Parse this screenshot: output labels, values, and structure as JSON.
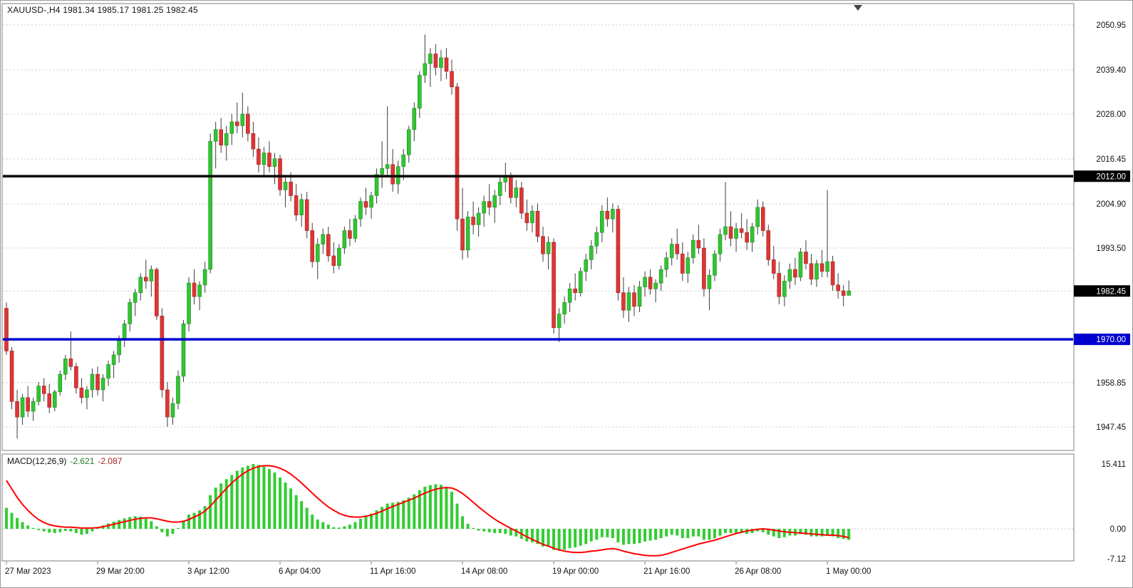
{
  "header": {
    "symbol_line": "XAUUSD-,H4 1981.34 1985.17 1981.25 1982.45"
  },
  "macd": {
    "name": "MACD(12,26,9)",
    "value_main_text": "-2.621",
    "value_signal_text": "-2.087"
  },
  "colors": {
    "background": "#FFFFFF",
    "panel_border": "#7d7d7d",
    "grid": "#c9c9c9",
    "up_fill": "#33c433",
    "up_edge": "#1d8c1d",
    "down_fill": "#dd3636",
    "down_edge": "#9e2020",
    "wick": "#3c3c3c",
    "hline_black": "#000000",
    "hline_blue": "#0000cf",
    "badge_black": "#000000",
    "badge_blue": "#0000cf",
    "badge_text": "#FFFFFF",
    "axis_text": "#111111",
    "hist": "#33cc33",
    "signal": "#ff0000",
    "shift_marker": "#444444"
  },
  "chart_data": {
    "type": "candlestick",
    "symbol": "XAUUSD-",
    "timeframe": "H4",
    "title": "XAUUSD-,H4",
    "current_ohlc": {
      "open": 1981.34,
      "high": 1985.17,
      "low": 1981.25,
      "close": 1982.45
    },
    "price_axis": {
      "range": [
        1941.5,
        2056.5
      ],
      "ticks": [
        {
          "label": "2050.95",
          "price": 2050.95,
          "badge": ""
        },
        {
          "label": "2039.40",
          "price": 2039.4,
          "badge": ""
        },
        {
          "label": "2028.00",
          "price": 2028.0,
          "badge": ""
        },
        {
          "label": "2016.45",
          "price": 2016.45,
          "badge": ""
        },
        {
          "label": "2012.00",
          "price": 2012.0,
          "badge": "black"
        },
        {
          "label": "2004.90",
          "price": 2004.9,
          "badge": ""
        },
        {
          "label": "1993.50",
          "price": 1993.5,
          "badge": ""
        },
        {
          "label": "1982.45",
          "price": 1982.45,
          "badge": "black"
        },
        {
          "label": "1970.00",
          "price": 1970.0,
          "badge": "blue"
        },
        {
          "label": "1958.85",
          "price": 1958.85,
          "badge": ""
        },
        {
          "label": "1947.45",
          "price": 1947.45,
          "badge": ""
        }
      ],
      "horizontal_lines": [
        {
          "label": "2012.00",
          "price": 2012.0,
          "color": "black",
          "width": 3.5
        },
        {
          "label": "1970.00",
          "price": 1970.0,
          "color": "blue",
          "width": 3.5
        }
      ]
    },
    "time_axis": {
      "labels": [
        "27 Mar 2023",
        "29 Mar 20:00",
        "3 Apr 12:00",
        "6 Apr 04:00",
        "11 Apr 16:00",
        "14 Apr 08:00",
        "19 Apr 00:00",
        "21 Apr 16:00",
        "26 Apr 08:00",
        "1 May 00:00"
      ],
      "indices": [
        0,
        17,
        34,
        51,
        68,
        85,
        102,
        119,
        136,
        153
      ]
    },
    "candles": [
      [
        1978,
        1979.5,
        1966,
        1967
      ],
      [
        1967,
        1968,
        1952,
        1954
      ],
      [
        1954,
        1957,
        1944.5,
        1950
      ],
      [
        1950,
        1956,
        1948,
        1955
      ],
      [
        1955,
        1958,
        1950,
        1951.5
      ],
      [
        1951.5,
        1955,
        1949,
        1954
      ],
      [
        1954,
        1959,
        1953,
        1958
      ],
      [
        1958,
        1960,
        1954,
        1956
      ],
      [
        1956,
        1958.5,
        1951,
        1952.5
      ],
      [
        1952.5,
        1957,
        1951.5,
        1956.5
      ],
      [
        1956.5,
        1962,
        1955.5,
        1961
      ],
      [
        1961,
        1966,
        1959.5,
        1965
      ],
      [
        1965,
        1972,
        1962,
        1963
      ],
      [
        1963,
        1964,
        1956,
        1957.5
      ],
      [
        1957.5,
        1960,
        1953.5,
        1955
      ],
      [
        1955,
        1958,
        1952,
        1957
      ],
      [
        1957,
        1962.5,
        1955,
        1961
      ],
      [
        1961,
        1963,
        1955.5,
        1957
      ],
      [
        1957,
        1961,
        1954,
        1960
      ],
      [
        1960,
        1964.5,
        1958,
        1963.5
      ],
      [
        1963.5,
        1967,
        1960,
        1966
      ],
      [
        1966,
        1971,
        1964,
        1970
      ],
      [
        1970,
        1975,
        1968,
        1974
      ],
      [
        1974,
        1980.5,
        1972,
        1979.5
      ],
      [
        1979.5,
        1983,
        1976,
        1982
      ],
      [
        1982,
        1987,
        1980,
        1986
      ],
      [
        1986,
        1990.5,
        1983,
        1985
      ],
      [
        1985,
        1989,
        1981,
        1988
      ],
      [
        1988,
        1988.5,
        1975,
        1976
      ],
      [
        1976,
        1978,
        1955,
        1957
      ],
      [
        1957,
        1959,
        1947.5,
        1950
      ],
      [
        1950,
        1955,
        1948,
        1953.5
      ],
      [
        1953.5,
        1962,
        1952,
        1960.5
      ],
      [
        1960.5,
        1975,
        1959,
        1974
      ],
      [
        1974,
        1986,
        1972,
        1984.5
      ],
      [
        1984.5,
        1988,
        1979,
        1981
      ],
      [
        1981,
        1985,
        1977.5,
        1984
      ],
      [
        1984,
        1990,
        1982,
        1988
      ],
      [
        1988,
        2023,
        1987,
        2021
      ],
      [
        2021,
        2026,
        2014,
        2024
      ],
      [
        2024,
        2027,
        2018,
        2020
      ],
      [
        2020,
        2025,
        2016,
        2023
      ],
      [
        2023,
        2028,
        2020,
        2026
      ],
      [
        2026,
        2031,
        2023,
        2025
      ],
      [
        2025,
        2033.5,
        2022,
        2028
      ],
      [
        2028,
        2030,
        2021,
        2023
      ],
      [
        2023,
        2026,
        2017,
        2019
      ],
      [
        2019,
        2022,
        2013,
        2015
      ],
      [
        2015,
        2019.5,
        2012,
        2018
      ],
      [
        2018,
        2021,
        2013,
        2014.5
      ],
      [
        2014.5,
        2018,
        2010,
        2016.5
      ],
      [
        2016.5,
        2017.5,
        2007,
        2008.5
      ],
      [
        2008.5,
        2012,
        2004,
        2010.5
      ],
      [
        2010.5,
        2013,
        2005.5,
        2007
      ],
      [
        2007,
        2010,
        2000.5,
        2002
      ],
      [
        2002,
        2007.5,
        1999,
        2006
      ],
      [
        2006,
        2008,
        1996,
        1998
      ],
      [
        1998,
        2000,
        1988.5,
        1990
      ],
      [
        1990,
        1996,
        1985.5,
        1994.5
      ],
      [
        1994.5,
        1998.5,
        1992,
        1997
      ],
      [
        1997,
        1999,
        1990,
        1991.5
      ],
      [
        1991.5,
        1995,
        1987,
        1989
      ],
      [
        1989,
        1994.5,
        1988,
        1993.5
      ],
      [
        1993.5,
        1999,
        1992,
        1998
      ],
      [
        1998,
        2001,
        1994,
        1996
      ],
      [
        1996,
        2002,
        1995,
        2001
      ],
      [
        2001,
        2006.5,
        1999,
        2005.5
      ],
      [
        2005.5,
        2009,
        2002,
        2004
      ],
      [
        2004,
        2008,
        2001,
        2007
      ],
      [
        2007,
        2014,
        2005,
        2012.5
      ],
      [
        2012.5,
        2021,
        2009,
        2014
      ],
      [
        2014,
        2030,
        2012,
        2015
      ],
      [
        2015,
        2019,
        2008,
        2010
      ],
      [
        2010,
        2016,
        2007.5,
        2014.5
      ],
      [
        2014.5,
        2019,
        2011,
        2017.5
      ],
      [
        2017.5,
        2025,
        2015.5,
        2024
      ],
      [
        2024,
        2031,
        2021,
        2029.5
      ],
      [
        2029.5,
        2039,
        2027,
        2038
      ],
      [
        2038,
        2048.5,
        2036,
        2041
      ],
      [
        2041,
        2045,
        2035,
        2043.5
      ],
      [
        2043.5,
        2046,
        2038,
        2040
      ],
      [
        2040,
        2044.5,
        2036.5,
        2042.5
      ],
      [
        2042.5,
        2045,
        2037,
        2039
      ],
      [
        2039,
        2042,
        2033,
        2035
      ],
      [
        2035,
        2036,
        1998,
        2001
      ],
      [
        2001,
        2009,
        1990.5,
        1993
      ],
      [
        1993,
        2003,
        1991,
        2001.5
      ],
      [
        2001.5,
        2005.5,
        1997,
        1999.5
      ],
      [
        1999.5,
        2004,
        1996.5,
        2002.5
      ],
      [
        2002.5,
        2007,
        1999,
        2005.5
      ],
      [
        2005.5,
        2010,
        2002,
        2004
      ],
      [
        2004,
        2008.5,
        2000,
        2007
      ],
      [
        2007,
        2012,
        2004.5,
        2010.5
      ],
      [
        2010.5,
        2015.5,
        2008,
        2012
      ],
      [
        2012,
        2013,
        2005,
        2006.5
      ],
      [
        2006.5,
        2011,
        2004,
        2009
      ],
      [
        2009,
        2010.5,
        2001,
        2002.5
      ],
      [
        2002.5,
        2006,
        1998,
        2000
      ],
      [
        2000,
        2004.5,
        1997.5,
        2003
      ],
      [
        2003,
        2005,
        1995,
        1996.5
      ],
      [
        1996.5,
        1999,
        1990,
        1992
      ],
      [
        1992,
        1996.5,
        1988,
        1995
      ],
      [
        1995,
        1996,
        1971.5,
        1973
      ],
      [
        1973,
        1978,
        1969.3,
        1976.5
      ],
      [
        1976.5,
        1981,
        1974,
        1979.5
      ],
      [
        1979.5,
        1984.5,
        1977,
        1983
      ],
      [
        1983,
        1987,
        1980,
        1982
      ],
      [
        1982,
        1988.5,
        1981,
        1987.5
      ],
      [
        1987.5,
        1992,
        1985,
        1990.5
      ],
      [
        1990.5,
        1995.5,
        1988,
        1994
      ],
      [
        1994,
        1999,
        1992,
        1997.5
      ],
      [
        1997.5,
        2004.5,
        1995,
        2003
      ],
      [
        2003,
        2006.5,
        1999,
        2001
      ],
      [
        2001,
        2005,
        1997.5,
        2003.5
      ],
      [
        2003.5,
        2004.5,
        1980,
        1982
      ],
      [
        1982,
        1986,
        1975.5,
        1977.5
      ],
      [
        1977.5,
        1983.5,
        1974.5,
        1982
      ],
      [
        1982,
        1984,
        1976,
        1978.5
      ],
      [
        1978.5,
        1985,
        1977,
        1983.5
      ],
      [
        1983.5,
        1987.5,
        1981,
        1986
      ],
      [
        1986,
        1988,
        1981.5,
        1983
      ],
      [
        1983,
        1985.5,
        1979.5,
        1984.5
      ],
      [
        1984.5,
        1989,
        1982.5,
        1988
      ],
      [
        1988,
        1992.5,
        1986,
        1991
      ],
      [
        1991,
        1996,
        1989,
        1994.5
      ],
      [
        1994.5,
        1998.5,
        1990.5,
        1992
      ],
      [
        1992,
        1995,
        1985,
        1987
      ],
      [
        1987,
        1992.5,
        1984.5,
        1991
      ],
      [
        1991,
        1997,
        1989.5,
        1995.5
      ],
      [
        1995.5,
        1999.5,
        1992,
        1993.5
      ],
      [
        1993.5,
        1996,
        1981,
        1983
      ],
      [
        1983,
        1988,
        1977.5,
        1986.5
      ],
      [
        1986.5,
        1993,
        1985,
        1992
      ],
      [
        1992,
        1998.5,
        1990,
        1997
      ],
      [
        1997,
        2010.5,
        1995.5,
        1999
      ],
      [
        1999,
        2003,
        1994,
        1996
      ],
      [
        1996,
        2000,
        1992.5,
        1998.5
      ],
      [
        1998.5,
        2002.5,
        1996,
        1997.5
      ],
      [
        1997.5,
        2001,
        1993,
        1995
      ],
      [
        1995,
        2000,
        1992.5,
        1999
      ],
      [
        1999,
        2006,
        1997,
        2004
      ],
      [
        2004,
        2005.5,
        1996.5,
        1998
      ],
      [
        1998,
        1999.5,
        1989,
        1990.5
      ],
      [
        1990.5,
        1994,
        1985.5,
        1987
      ],
      [
        1987,
        1990,
        1979,
        1981
      ],
      [
        1981,
        1986.5,
        1978.5,
        1985
      ],
      [
        1985,
        1989.5,
        1983,
        1988
      ],
      [
        1988,
        1991,
        1984,
        1986
      ],
      [
        1986,
        1993.5,
        1985,
        1992.5
      ],
      [
        1992.5,
        1995.5,
        1988,
        1989.5
      ],
      [
        1989.5,
        1992,
        1984,
        1985.5
      ],
      [
        1985.5,
        1990.5,
        1983.5,
        1989.5
      ],
      [
        1989.5,
        1993,
        1986,
        1987.5
      ],
      [
        1987.5,
        2008.5,
        1986,
        1990
      ],
      [
        1990,
        1991.5,
        1982.5,
        1984
      ],
      [
        1984,
        1987,
        1980.5,
        1982.5
      ],
      [
        1982.5,
        1984,
        1978.5,
        1981.3
      ],
      [
        1981.34,
        1985.17,
        1981.25,
        1982.45
      ]
    ],
    "indicator": {
      "name": "MACD",
      "params": "12,26,9",
      "value_main": -2.621,
      "value_signal": -2.087,
      "axis_ticks": [
        {
          "label": "15.411",
          "value": 15.411
        },
        {
          "label": "0.00",
          "value": 0
        },
        {
          "label": "-7.12",
          "value": -7.12
        }
      ],
      "histogram": [
        5.0,
        3.8,
        2.6,
        1.6,
        0.8,
        0.2,
        -0.3,
        -0.6,
        -0.9,
        -1.0,
        -0.8,
        -0.5,
        -0.6,
        -1.0,
        -1.4,
        -1.2,
        -0.6,
        0.2,
        0.8,
        1.3,
        1.7,
        2.1,
        2.5,
        2.8,
        3.0,
        2.9,
        2.4,
        1.8,
        0.6,
        -0.8,
        -1.8,
        -1.2,
        0.2,
        1.8,
        3.4,
        3.8,
        4.4,
        5.4,
        8.0,
        9.8,
        10.8,
        11.8,
        12.8,
        13.8,
        14.6,
        15.0,
        15.4,
        15.2,
        14.8,
        14.2,
        13.4,
        12.2,
        11.0,
        9.6,
        8.0,
        6.6,
        5.0,
        3.4,
        2.2,
        1.6,
        1.0,
        0.4,
        0.3,
        0.6,
        1.0,
        1.6,
        2.4,
        3.0,
        3.6,
        4.4,
        5.2,
        6.0,
        6.2,
        6.4,
        6.8,
        7.4,
        8.2,
        9.2,
        10.0,
        10.4,
        10.6,
        10.5,
        10.0,
        8.8,
        6.0,
        3.0,
        1.2,
        0.2,
        -0.4,
        -0.6,
        -0.8,
        -1.0,
        -1.0,
        -1.2,
        -1.6,
        -1.8,
        -2.4,
        -3.0,
        -3.2,
        -3.6,
        -4.2,
        -4.0,
        -5.0,
        -5.2,
        -5.0,
        -4.6,
        -4.4,
        -4.0,
        -3.6,
        -3.0,
        -2.6,
        -2.0,
        -2.0,
        -2.2,
        -3.2,
        -3.8,
        -3.6,
        -3.6,
        -3.4,
        -3.0,
        -2.8,
        -2.6,
        -2.2,
        -1.8,
        -1.4,
        -1.6,
        -2.2,
        -2.2,
        -1.8,
        -1.8,
        -2.6,
        -2.6,
        -2.2,
        -1.6,
        -1.0,
        -1.0,
        -1.0,
        -1.0,
        -1.2,
        -1.0,
        -0.6,
        -0.8,
        -1.4,
        -1.8,
        -2.2,
        -2.0,
        -1.6,
        -1.6,
        -1.2,
        -1.4,
        -1.8,
        -1.8,
        -1.8,
        -1.4,
        -1.8,
        -2.2,
        -2.4,
        -2.621
      ],
      "signal": [
        11.5,
        9.5,
        7.5,
        5.8,
        4.4,
        3.2,
        2.2,
        1.5,
        1.0,
        0.7,
        0.5,
        0.4,
        0.4,
        0.3,
        0.2,
        0.2,
        0.2,
        0.3,
        0.5,
        0.8,
        1.1,
        1.4,
        1.7,
        2.0,
        2.3,
        2.5,
        2.6,
        2.6,
        2.4,
        2.1,
        1.8,
        1.6,
        1.6,
        1.8,
        2.2,
        2.8,
        3.4,
        4.2,
        5.4,
        6.8,
        8.2,
        9.6,
        10.9,
        12.0,
        13.0,
        13.8,
        14.4,
        14.8,
        15.0,
        15.0,
        14.8,
        14.4,
        13.8,
        13.0,
        12.0,
        10.9,
        9.7,
        8.5,
        7.3,
        6.2,
        5.2,
        4.4,
        3.7,
        3.2,
        2.9,
        2.8,
        2.8,
        3.0,
        3.3,
        3.7,
        4.2,
        4.8,
        5.3,
        5.8,
        6.3,
        6.8,
        7.3,
        7.9,
        8.5,
        9.0,
        9.4,
        9.7,
        9.8,
        9.7,
        9.2,
        8.4,
        7.4,
        6.3,
        5.2,
        4.2,
        3.2,
        2.3,
        1.5,
        0.8,
        0.1,
        -0.5,
        -1.2,
        -1.9,
        -2.5,
        -3.1,
        -3.7,
        -4.1,
        -4.6,
        -5.0,
        -5.3,
        -5.5,
        -5.6,
        -5.6,
        -5.5,
        -5.3,
        -5.2,
        -5.0,
        -4.8,
        -4.7,
        -4.9,
        -5.3,
        -5.6,
        -5.9,
        -6.1,
        -6.3,
        -6.4,
        -6.4,
        -6.3,
        -6.0,
        -5.6,
        -5.2,
        -4.8,
        -4.4,
        -4.0,
        -3.6,
        -3.3,
        -3.0,
        -2.7,
        -2.3,
        -1.9,
        -1.5,
        -1.1,
        -0.8,
        -0.5,
        -0.3,
        -0.1,
        0.0,
        -0.1,
        -0.3,
        -0.5,
        -0.7,
        -0.8,
        -0.9,
        -1.0,
        -1.1,
        -1.2,
        -1.3,
        -1.4,
        -1.5,
        -1.5,
        -1.6,
        -1.8,
        -2.087
      ]
    }
  }
}
